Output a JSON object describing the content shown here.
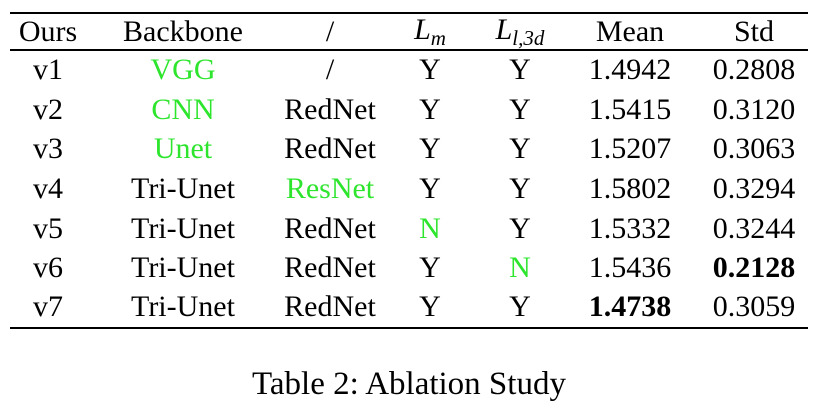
{
  "table": {
    "header": [
      "Ours",
      "Backbone",
      "/",
      {
        "base": "L",
        "sub": "m"
      },
      {
        "base": "L",
        "sub": "l,3d"
      },
      "Mean",
      "Std"
    ],
    "rows": [
      [
        "v1",
        "VGG",
        "/",
        "Y",
        "Y",
        "1.4942",
        "0.2808"
      ],
      [
        "v2",
        "CNN",
        "RedNet",
        "Y",
        "Y",
        "1.5415",
        "0.3120"
      ],
      [
        "v3",
        "Unet",
        "RedNet",
        "Y",
        "Y",
        "1.5207",
        "0.3063"
      ],
      [
        "v4",
        "Tri-Unet",
        "ResNet",
        "Y",
        "Y",
        "1.5802",
        "0.3294"
      ],
      [
        "v5",
        "Tri-Unet",
        "RedNet",
        "N",
        "Y",
        "1.5332",
        "0.3244"
      ],
      [
        "v6",
        "Tri-Unet",
        "RedNet",
        "Y",
        "N",
        "1.5436",
        "0.2128"
      ],
      [
        "v7",
        "Tri-Unet",
        "RedNet",
        "Y",
        "Y",
        "1.4738",
        "0.3059"
      ]
    ]
  },
  "caption": "Table 2: Ablation Study"
}
